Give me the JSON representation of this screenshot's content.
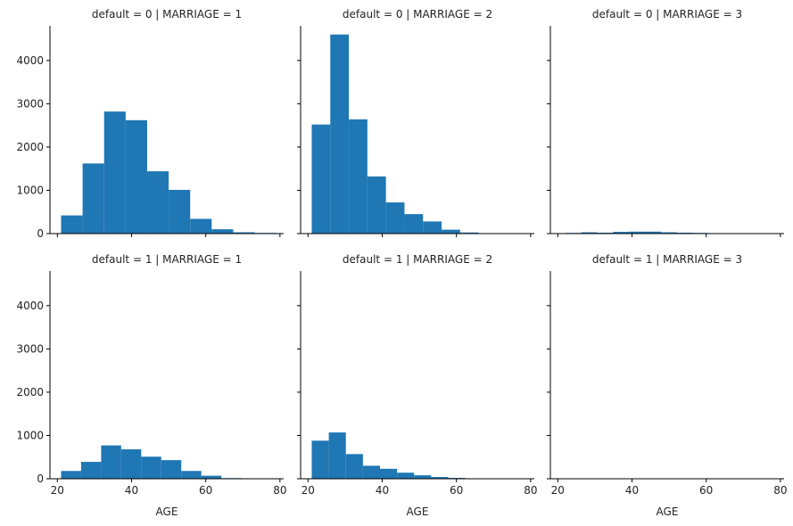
{
  "chart_data": {
    "type": "bar",
    "subtype": "histogram-facet-grid",
    "bar_color": "#1f77b4",
    "x_label": "AGE",
    "xlim": [
      18,
      81
    ],
    "ylim": [
      0,
      4800
    ],
    "x_ticks": [
      20,
      40,
      60,
      80
    ],
    "y_ticks": [
      0,
      1000,
      2000,
      3000,
      4000
    ],
    "grid": false,
    "panels": [
      {
        "title": "default = 0 | MARRIAGE = 1",
        "bins": [
          {
            "x0": 21,
            "x1": 26.8,
            "value": 420
          },
          {
            "x0": 26.8,
            "x1": 32.6,
            "value": 1620
          },
          {
            "x0": 32.6,
            "x1": 38.4,
            "value": 2820
          },
          {
            "x0": 38.4,
            "x1": 44.2,
            "value": 2620
          },
          {
            "x0": 44.2,
            "x1": 50.0,
            "value": 1440
          },
          {
            "x0": 50.0,
            "x1": 55.8,
            "value": 1010
          },
          {
            "x0": 55.8,
            "x1": 61.6,
            "value": 340
          },
          {
            "x0": 61.6,
            "x1": 67.4,
            "value": 100
          },
          {
            "x0": 67.4,
            "x1": 73.2,
            "value": 30
          },
          {
            "x0": 73.2,
            "x1": 79,
            "value": 15
          }
        ]
      },
      {
        "title": "default = 0 | MARRIAGE = 2",
        "bins": [
          {
            "x0": 21,
            "x1": 26.0,
            "value": 2520
          },
          {
            "x0": 26.0,
            "x1": 31.0,
            "value": 4600
          },
          {
            "x0": 31.0,
            "x1": 36.0,
            "value": 2640
          },
          {
            "x0": 36.0,
            "x1": 41.0,
            "value": 1320
          },
          {
            "x0": 41.0,
            "x1": 46.0,
            "value": 720
          },
          {
            "x0": 46.0,
            "x1": 51.0,
            "value": 450
          },
          {
            "x0": 51.0,
            "x1": 56.0,
            "value": 280
          },
          {
            "x0": 56.0,
            "x1": 61.0,
            "value": 90
          },
          {
            "x0": 61.0,
            "x1": 66.0,
            "value": 25
          },
          {
            "x0": 66.0,
            "x1": 71,
            "value": 10
          }
        ]
      },
      {
        "title": "default = 0 | MARRIAGE = 3",
        "bins": [
          {
            "x0": 22,
            "x1": 26.3,
            "value": 15
          },
          {
            "x0": 26.3,
            "x1": 30.6,
            "value": 30
          },
          {
            "x0": 30.6,
            "x1": 34.9,
            "value": 20
          },
          {
            "x0": 34.9,
            "x1": 39.2,
            "value": 40
          },
          {
            "x0": 39.2,
            "x1": 43.5,
            "value": 45
          },
          {
            "x0": 43.5,
            "x1": 47.8,
            "value": 45
          },
          {
            "x0": 47.8,
            "x1": 52.1,
            "value": 30
          },
          {
            "x0": 52.1,
            "x1": 56.4,
            "value": 20
          },
          {
            "x0": 56.4,
            "x1": 60.7,
            "value": 15
          },
          {
            "x0": 60.7,
            "x1": 65,
            "value": 10
          }
        ]
      },
      {
        "title": "default = 1 | MARRIAGE = 1",
        "bins": [
          {
            "x0": 21,
            "x1": 26.4,
            "value": 180
          },
          {
            "x0": 26.4,
            "x1": 31.8,
            "value": 390
          },
          {
            "x0": 31.8,
            "x1": 37.2,
            "value": 770
          },
          {
            "x0": 37.2,
            "x1": 42.6,
            "value": 680
          },
          {
            "x0": 42.6,
            "x1": 48.0,
            "value": 510
          },
          {
            "x0": 48.0,
            "x1": 53.4,
            "value": 430
          },
          {
            "x0": 53.4,
            "x1": 58.8,
            "value": 180
          },
          {
            "x0": 58.8,
            "x1": 64.2,
            "value": 70
          },
          {
            "x0": 64.2,
            "x1": 69.6,
            "value": 15
          },
          {
            "x0": 69.6,
            "x1": 75,
            "value": 10
          }
        ]
      },
      {
        "title": "default = 1 | MARRIAGE = 2",
        "bins": [
          {
            "x0": 21,
            "x1": 25.6,
            "value": 880
          },
          {
            "x0": 25.6,
            "x1": 30.2,
            "value": 1070
          },
          {
            "x0": 30.2,
            "x1": 34.8,
            "value": 570
          },
          {
            "x0": 34.8,
            "x1": 39.4,
            "value": 300
          },
          {
            "x0": 39.4,
            "x1": 44.0,
            "value": 230
          },
          {
            "x0": 44.0,
            "x1": 48.6,
            "value": 140
          },
          {
            "x0": 48.6,
            "x1": 53.2,
            "value": 80
          },
          {
            "x0": 53.2,
            "x1": 57.8,
            "value": 40
          },
          {
            "x0": 57.8,
            "x1": 62.4,
            "value": 20
          },
          {
            "x0": 62.4,
            "x1": 67,
            "value": 5
          }
        ]
      },
      {
        "title": "default = 1 | MARRIAGE = 3",
        "bins": [
          {
            "x0": 23,
            "x1": 26.7,
            "value": 10
          },
          {
            "x0": 26.7,
            "x1": 30.4,
            "value": 8
          },
          {
            "x0": 30.4,
            "x1": 34.1,
            "value": 4
          },
          {
            "x0": 34.1,
            "x1": 37.8,
            "value": 8
          },
          {
            "x0": 37.8,
            "x1": 41.5,
            "value": 10
          },
          {
            "x0": 41.5,
            "x1": 45.2,
            "value": 10
          },
          {
            "x0": 45.2,
            "x1": 48.9,
            "value": 8
          },
          {
            "x0": 48.9,
            "x1": 52.6,
            "value": 8
          },
          {
            "x0": 52.6,
            "x1": 56.3,
            "value": 6
          },
          {
            "x0": 56.3,
            "x1": 60,
            "value": 6
          }
        ]
      }
    ]
  }
}
